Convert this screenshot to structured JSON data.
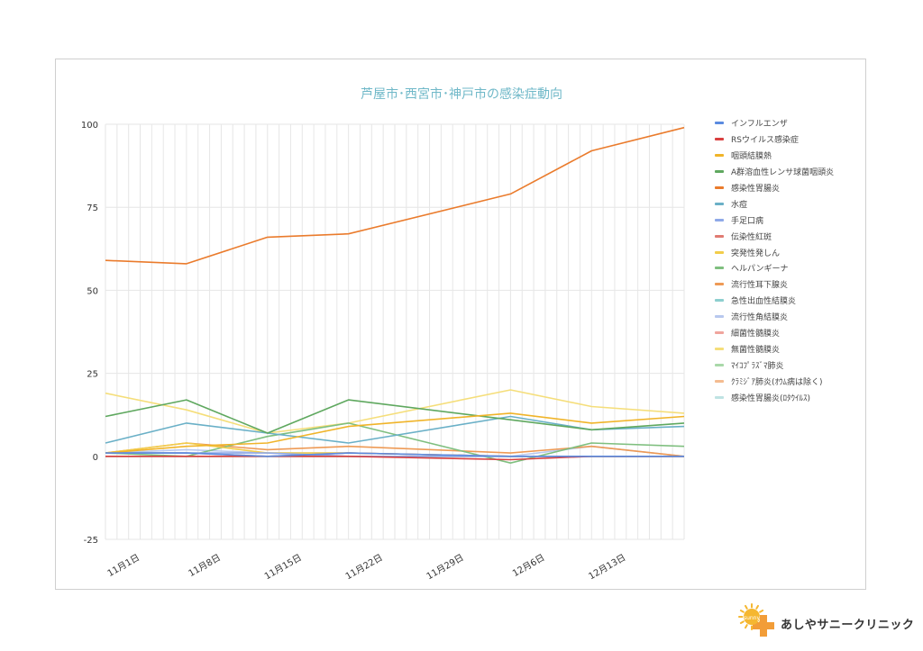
{
  "brand": {
    "name": "あしやサニークリニック",
    "sun_text": "sunny"
  },
  "colors": {
    "title": "#6fb8c8",
    "grid": "#e6e6e6",
    "axis_text": "#333333",
    "logo_sun": "#f5b731",
    "logo_cross": "#f29d38"
  },
  "chart_data": {
    "type": "line",
    "title": "芦屋市･西宮市･神戸市の感染症動向",
    "xlabel": "",
    "ylabel": "",
    "ylim": [
      -25,
      100
    ],
    "yticks": [
      -25,
      0,
      25,
      50,
      75,
      100
    ],
    "xlim": [
      "2022-10-29",
      "2022-12-18"
    ],
    "xticks": [
      {
        "date": "2022-11-01",
        "label": "11月1日"
      },
      {
        "date": "2022-11-08",
        "label": "11月8日"
      },
      {
        "date": "2022-11-15",
        "label": "11月15日"
      },
      {
        "date": "2022-11-22",
        "label": "11月22日"
      },
      {
        "date": "2022-11-29",
        "label": "11月29日"
      },
      {
        "date": "2022-12-06",
        "label": "12月6日"
      },
      {
        "date": "2022-12-13",
        "label": "12月13日"
      }
    ],
    "x": [
      "2022-10-29",
      "2022-11-05",
      "2022-11-12",
      "2022-11-19",
      "2022-12-03",
      "2022-12-10",
      "2022-12-18"
    ],
    "grid": true,
    "legend_position": "right",
    "series": [
      {
        "name": "インフルエンザ",
        "color": "#5b8be0",
        "values": [
          1,
          1,
          0,
          1,
          0,
          0,
          0
        ]
      },
      {
        "name": "RSウイルス感染症",
        "color": "#d94040",
        "values": [
          0,
          0,
          0,
          0,
          -1,
          0,
          0
        ]
      },
      {
        "name": "咽頭結膜熱",
        "color": "#f0b429",
        "values": [
          1,
          3,
          4,
          9,
          13,
          10,
          12
        ]
      },
      {
        "name": "A群溶血性レンサ球菌咽頭炎",
        "color": "#5fa85f",
        "values": [
          12,
          17,
          7,
          17,
          11,
          8,
          10
        ]
      },
      {
        "name": "感染性胃腸炎",
        "color": "#ea7b2c",
        "values": [
          59,
          58,
          66,
          67,
          79,
          92,
          99
        ]
      },
      {
        "name": "水痘",
        "color": "#6ab0c7",
        "values": [
          4,
          10,
          7,
          4,
          12,
          8,
          9
        ]
      },
      {
        "name": "手足口病",
        "color": "#8fa9e8",
        "values": [
          1,
          1,
          1,
          0,
          0,
          0,
          0
        ]
      },
      {
        "name": "伝染性紅斑",
        "color": "#e07b72",
        "values": [
          1,
          1,
          0,
          1,
          0,
          0,
          0
        ]
      },
      {
        "name": "突発性発しん",
        "color": "#f2cd4a",
        "values": [
          1,
          4,
          1,
          1,
          0,
          0,
          0
        ]
      },
      {
        "name": "ヘルパンギーナ",
        "color": "#7fbf7f",
        "values": [
          1,
          0,
          6,
          10,
          -2,
          4,
          3
        ]
      },
      {
        "name": "流行性耳下腺炎",
        "color": "#ee9a55",
        "values": [
          1,
          4,
          2,
          3,
          1,
          3,
          0
        ]
      },
      {
        "name": "急性出血性結膜炎",
        "color": "#8dcfcf",
        "values": [
          0,
          0,
          0,
          0,
          0,
          0,
          0
        ]
      },
      {
        "name": "流行性角結膜炎",
        "color": "#b8c8ee",
        "values": [
          1,
          2,
          1,
          1,
          0,
          3,
          0
        ]
      },
      {
        "name": "細菌性髄膜炎",
        "color": "#f0a59d",
        "values": [
          0,
          0,
          0,
          0,
          0,
          0,
          0
        ]
      },
      {
        "name": "無菌性髄膜炎",
        "color": "#f5de7a",
        "values": [
          19,
          14,
          7,
          10,
          20,
          15,
          13
        ]
      },
      {
        "name": "ﾏｲｺﾌﾟﾗｽﾞﾏ肺炎",
        "color": "#a9d8a9",
        "values": [
          0,
          0,
          0,
          0,
          0,
          0,
          0
        ]
      },
      {
        "name": "ｸﾗﾐｼﾞｱ肺炎(ｵｳﾑ病は除く)",
        "color": "#f4bc90",
        "values": [
          0,
          0,
          0,
          0,
          0,
          0,
          0
        ]
      },
      {
        "name": "感染性胃腸炎(ﾛﾀｳｲﾙｽ)",
        "color": "#bfe3e3",
        "values": [
          0,
          0,
          0,
          0,
          0,
          0,
          0
        ]
      }
    ]
  }
}
